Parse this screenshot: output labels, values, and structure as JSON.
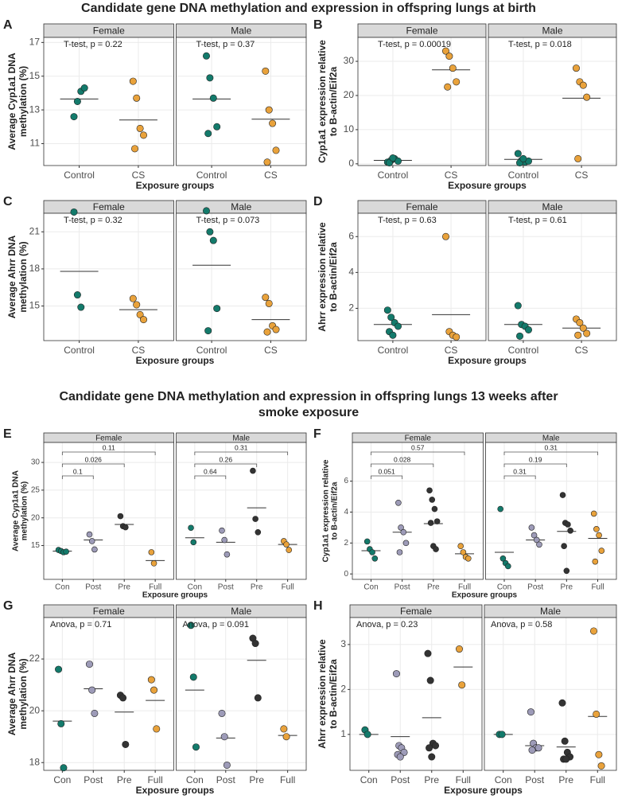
{
  "title_1": "Candidate gene DNA methylation and expression in offspring lungs at birth",
  "title_2": [
    "Candidate gene DNA methylation and expression in offspring lungs 13 weeks after",
    "smoke exposure"
  ],
  "chart_data": [
    {
      "type": "strip",
      "panel": "A",
      "ylabel": [
        "Average Cyp1a1 DNA",
        "methylation (%)"
      ],
      "xlabel": "Exposure groups",
      "categories": [
        "Control",
        "CS"
      ],
      "colors": [
        "#137a6b",
        "#e9a23b"
      ],
      "ylim": [
        9.7,
        17.3
      ],
      "yticks": [
        11,
        13,
        15,
        17
      ],
      "grid": true,
      "facets": [
        {
          "name": "Female",
          "annotation": "T-test, p = 0.22",
          "groups": [
            [
              12.6,
              13.5,
              14.1,
              14.3
            ],
            [
              14.7,
              13.7,
              11.9,
              11.5,
              10.7
            ]
          ],
          "means": [
            13.65,
            12.4
          ]
        },
        {
          "name": "Male",
          "annotation": "T-test, p = 0.37",
          "groups": [
            [
              16.2,
              14.9,
              13.7,
              12.0,
              11.6
            ],
            [
              15.3,
              13.0,
              12.2,
              10.6,
              9.9
            ]
          ],
          "means": [
            13.65,
            12.45
          ]
        }
      ]
    },
    {
      "type": "strip",
      "panel": "B",
      "ylabel": [
        "Cyp1a1 expression relative",
        "to B-actin/Eif2a"
      ],
      "xlabel": "Exposure groups",
      "categories": [
        "Control",
        "CS"
      ],
      "colors": [
        "#137a6b",
        "#e9a23b"
      ],
      "ylim": [
        -0.5,
        37
      ],
      "yticks": [
        0,
        10,
        20,
        30
      ],
      "grid": true,
      "facets": [
        {
          "name": "Female",
          "annotation": "T-test, p = 0.00019",
          "groups": [
            [
              0.5,
              1,
              1.5,
              0.8,
              0.3,
              1.7
            ],
            [
              33,
              31.5,
              28,
              24,
              22.5
            ]
          ],
          "means": [
            1,
            27.5
          ]
        },
        {
          "name": "Male",
          "annotation": "T-test, p = 0.018",
          "groups": [
            [
              3,
              1,
              0.5,
              0.8,
              0.3,
              1.5
            ],
            [
              28,
              24,
              23,
              19.5,
              1.5
            ]
          ],
          "means": [
            1.3,
            19.2
          ]
        }
      ]
    },
    {
      "type": "strip",
      "panel": "C",
      "ylabel": [
        "Average Ahrr DNA",
        "methylation (%)"
      ],
      "xlabel": "Exposure groups",
      "categories": [
        "Control",
        "CS"
      ],
      "colors": [
        "#137a6b",
        "#e9a23b"
      ],
      "ylim": [
        12.2,
        22.5
      ],
      "yticks": [
        15,
        18,
        21
      ],
      "grid": true,
      "facets": [
        {
          "name": "Female",
          "annotation": "T-test, p = 0.32",
          "groups": [
            [
              22.6,
              15.9,
              14.9
            ],
            [
              15.6,
              15.1,
              14.3,
              13.9
            ]
          ],
          "means": [
            17.8,
            14.7
          ]
        },
        {
          "name": "Male",
          "annotation": "T-test, p = 0.073",
          "groups": [
            [
              22.7,
              21.0,
              20.3,
              14.8,
              13.0
            ],
            [
              15.7,
              15.2,
              13.4,
              13.1,
              12.9
            ]
          ],
          "means": [
            18.3,
            13.9
          ]
        }
      ]
    },
    {
      "type": "strip",
      "panel": "D",
      "ylabel": [
        "Ahrr expression relative",
        "to B-actin/Eif2a"
      ],
      "xlabel": "Exposure groups",
      "categories": [
        "Control",
        "CS"
      ],
      "colors": [
        "#137a6b",
        "#e9a23b"
      ],
      "ylim": [
        0.2,
        7.3
      ],
      "yticks": [
        2,
        4,
        6
      ],
      "grid": true,
      "facets": [
        {
          "name": "Female",
          "annotation": "T-test, p = 0.63",
          "groups": [
            [
              1.9,
              1.5,
              1.2,
              1.0,
              0.7,
              0.5
            ],
            [
              6.0,
              0.7,
              0.5,
              0.4
            ]
          ],
          "means": [
            1.1,
            1.65
          ]
        },
        {
          "name": "Male",
          "annotation": "T-test, p = 0.61",
          "groups": [
            [
              2.15,
              1.1,
              1.0,
              0.8,
              0.45
            ],
            [
              1.4,
              1.2,
              0.9,
              0.6,
              0.5
            ]
          ],
          "means": [
            1.1,
            0.9
          ]
        }
      ]
    },
    {
      "type": "strip",
      "panel": "E",
      "ylabel": [
        "Average Cyp1a1 DNA",
        "methylation (%)"
      ],
      "xlabel": "Exposure groups",
      "categories": [
        "Con",
        "Post",
        "Pre",
        "Full"
      ],
      "colors": [
        "#137a6b",
        "#9d9bb8",
        "#333333",
        "#e9a23b"
      ],
      "ylim": [
        8.9,
        33.6
      ],
      "yticks": [
        15,
        20,
        25,
        30
      ],
      "grid": true,
      "facets": [
        {
          "name": "Female",
          "comparisons": [
            "0.1",
            "0.026",
            "0.11"
          ],
          "groups": [
            [
              14.2,
              14.0,
              13.8,
              13.9
            ],
            [
              17.0,
              15.8,
              14.3
            ],
            [
              20.3,
              18.5,
              18.3
            ],
            [
              13.8,
              11.8
            ]
          ],
          "means": [
            14.0,
            16.0,
            18.8,
            12.3
          ]
        },
        {
          "name": "Male",
          "comparisons": [
            "0.64",
            "0.26",
            "0.31"
          ],
          "groups": [
            [
              18.2,
              15.6
            ],
            [
              17.7,
              16.0,
              13.4
            ],
            [
              28.5,
              19.8,
              17.4
            ],
            [
              15.8,
              15.2,
              14.2
            ]
          ],
          "means": [
            16.4,
            15.6,
            21.8,
            15.2
          ]
        }
      ]
    },
    {
      "type": "strip",
      "panel": "F",
      "ylabel": [
        "Cyp1a1 expression relative",
        "to B-actin/Eif2a"
      ],
      "xlabel": "Exposure groups",
      "categories": [
        "Con",
        "Post",
        "Pre",
        "Full"
      ],
      "colors": [
        "#137a6b",
        "#9d9bb8",
        "#333333",
        "#e9a23b"
      ],
      "ylim": [
        -0.35,
        8.5
      ],
      "yticks": [
        0,
        2,
        4,
        6
      ],
      "grid": true,
      "facets": [
        {
          "name": "Female",
          "comparisons": [
            "0.051",
            "0.028",
            "0.57"
          ],
          "groups": [
            [
              2.1,
              1.6,
              1.4,
              1.0
            ],
            [
              4.6,
              3.0,
              2.7,
              2.0,
              1.4
            ],
            [
              5.4,
              4.8,
              4.2,
              3.4,
              3.3,
              1.8,
              1.6
            ],
            [
              1.8,
              1.4,
              1.1,
              1.0
            ]
          ],
          "means": [
            1.5,
            2.7,
            3.25,
            1.3
          ]
        },
        {
          "name": "Male",
          "comparisons": [
            "0.31",
            "0.19",
            "0.31"
          ],
          "groups": [
            [
              4.2,
              1.0,
              0.7,
              0.5
            ],
            [
              3.0,
              2.5,
              2.2,
              1.9
            ],
            [
              5.1,
              3.3,
              3.2,
              2.8,
              1.8,
              0.2
            ],
            [
              3.9,
              2.9,
              2.5,
              1.5,
              0.8
            ]
          ],
          "means": [
            1.4,
            2.2,
            2.75,
            2.3
          ]
        }
      ]
    },
    {
      "type": "strip",
      "panel": "G",
      "ylabel": [
        "Average Ahrr DNA",
        "methylation (%)"
      ],
      "xlabel": "Exposure groups",
      "categories": [
        "Con",
        "Post",
        "Pre",
        "Full"
      ],
      "colors": [
        "#137a6b",
        "#9d9bb8",
        "#333333",
        "#e9a23b"
      ],
      "ylim": [
        17.7,
        23.6
      ],
      "yticks": [
        18,
        20,
        22
      ],
      "grid": true,
      "facets": [
        {
          "name": "Female",
          "annotation": "Anova, p = 0.71",
          "groups": [
            [
              21.6,
              19.5,
              17.8
            ],
            [
              21.8,
              20.8,
              19.9
            ],
            [
              20.6,
              20.5,
              18.7
            ],
            [
              21.2,
              20.8,
              19.3
            ]
          ],
          "means": [
            19.6,
            20.85,
            19.95,
            20.4
          ]
        },
        {
          "name": "Male",
          "annotation": "Anova, p = 0.091",
          "groups": [
            [
              23.3,
              21.3,
              18.6
            ],
            [
              19.9,
              19.0,
              17.9
            ],
            [
              22.8,
              22.6,
              20.5
            ],
            [
              19.3,
              19.0
            ]
          ],
          "means": [
            20.8,
            18.95,
            21.95,
            19.05
          ]
        }
      ]
    },
    {
      "type": "strip",
      "panel": "H",
      "ylabel": [
        "Ahrr expression relative",
        "to B-actin/Eif2a"
      ],
      "xlabel": "Exposure groups",
      "categories": [
        "Con",
        "Post",
        "Pre",
        "Full"
      ],
      "colors": [
        "#137a6b",
        "#9d9bb8",
        "#333333",
        "#e9a23b"
      ],
      "ylim": [
        0.2,
        3.6
      ],
      "yticks": [
        1,
        2,
        3
      ],
      "grid": true,
      "facets": [
        {
          "name": "Female",
          "annotation": "Anova, p = 0.23",
          "groups": [
            [
              1.1,
              1.0
            ],
            [
              2.35,
              0.75,
              0.7,
              0.6,
              0.55,
              0.5
            ],
            [
              2.8,
              2.2,
              0.8,
              0.75,
              0.7,
              0.5
            ],
            [
              2.9,
              2.1
            ]
          ],
          "means": [
            1.0,
            0.95,
            1.37,
            2.5
          ]
        },
        {
          "name": "Male",
          "annotation": "Anova, p = 0.58",
          "groups": [
            [
              1.0,
              1.0
            ],
            [
              1.5,
              0.8,
              0.7,
              0.7,
              0.65
            ],
            [
              1.7,
              0.85,
              0.6,
              0.5,
              0.45,
              0.45
            ],
            [
              3.3,
              1.45,
              0.55,
              0.3
            ]
          ],
          "means": [
            1.0,
            0.75,
            0.72,
            1.4
          ]
        }
      ]
    }
  ]
}
